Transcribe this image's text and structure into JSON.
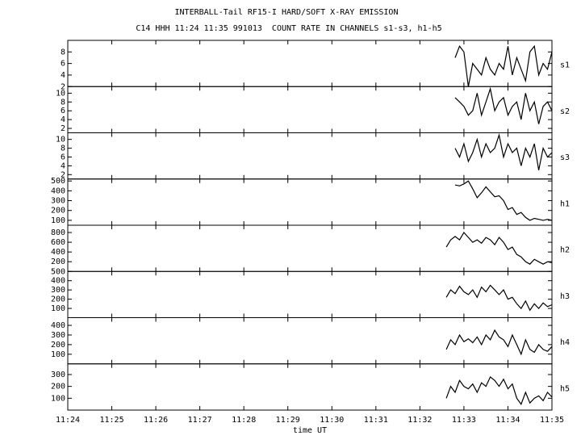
{
  "chart_data": [
    {
      "type": "line",
      "title": "INTERBALL-Tail RF15-I HARD/SOFT X-RAY EMISSION",
      "subtitle": "C14 HHH 11:24 11:35 991013  COUNT RATE IN CHANNELS s1-s3, h1-h5",
      "label": "s1",
      "color": "#000000",
      "x": [
        692.8,
        692.9,
        693.0,
        693.1,
        693.2,
        693.3,
        693.4,
        693.5,
        693.6,
        693.7,
        693.8,
        693.9,
        694.0,
        694.1,
        694.2,
        694.3,
        694.4,
        694.5,
        694.6,
        694.7,
        694.8,
        694.9,
        695.0
      ],
      "values": [
        7,
        9,
        8,
        2,
        6,
        5,
        4,
        7,
        5,
        4,
        6,
        5,
        9,
        4,
        7,
        5,
        3,
        8,
        9,
        4,
        6,
        5,
        8
      ],
      "ylim": [
        2,
        10
      ],
      "yticks": [
        2,
        4,
        6,
        8
      ]
    },
    {
      "type": "line",
      "label": "s2",
      "color": "#000000",
      "x": [
        692.8,
        692.9,
        693.0,
        693.1,
        693.2,
        693.3,
        693.4,
        693.5,
        693.6,
        693.7,
        693.8,
        693.9,
        694.0,
        694.1,
        694.2,
        694.3,
        694.4,
        694.5,
        694.6,
        694.7,
        694.8,
        694.9,
        695.0
      ],
      "values": [
        9,
        8,
        7,
        5,
        6,
        10,
        5,
        8,
        11,
        6,
        8,
        9,
        5,
        7,
        8,
        4,
        10,
        6,
        8,
        3,
        7,
        8,
        6
      ],
      "ylim": [
        1,
        11.5
      ],
      "yticks": [
        2,
        4,
        6,
        8,
        10
      ]
    },
    {
      "type": "line",
      "label": "s3",
      "color": "#000000",
      "x": [
        692.8,
        692.9,
        693.0,
        693.1,
        693.2,
        693.3,
        693.4,
        693.5,
        693.6,
        693.7,
        693.8,
        693.9,
        694.0,
        694.1,
        694.2,
        694.3,
        694.4,
        694.5,
        694.6,
        694.7,
        694.8,
        694.9,
        695.0
      ],
      "values": [
        8,
        6,
        9,
        5,
        7,
        10,
        6,
        9,
        7,
        8,
        11,
        6,
        9,
        7,
        8,
        4,
        8,
        6,
        9,
        3,
        8,
        6,
        7
      ],
      "ylim": [
        1,
        11.5
      ],
      "yticks": [
        2,
        4,
        6,
        8,
        10
      ]
    },
    {
      "type": "line",
      "label": "h1",
      "color": "#000000",
      "x": [
        692.8,
        692.9,
        693.0,
        693.1,
        693.2,
        693.3,
        693.4,
        693.5,
        693.6,
        693.7,
        693.8,
        693.9,
        694.0,
        694.1,
        694.2,
        694.3,
        694.4,
        694.5,
        694.6,
        694.7,
        694.8,
        694.9,
        695.0
      ],
      "values": [
        460,
        450,
        470,
        500,
        420,
        330,
        380,
        440,
        390,
        340,
        350,
        300,
        210,
        230,
        160,
        180,
        130,
        100,
        120,
        110,
        100,
        110,
        100
      ],
      "ylim": [
        50,
        520
      ],
      "yticks": [
        100,
        200,
        300,
        400,
        500
      ]
    },
    {
      "type": "line",
      "label": "h2",
      "color": "#000000",
      "x": [
        692.6,
        692.7,
        692.8,
        692.9,
        693.0,
        693.1,
        693.2,
        693.3,
        693.4,
        693.5,
        693.6,
        693.7,
        693.8,
        693.9,
        694.0,
        694.1,
        694.2,
        694.3,
        694.4,
        694.5,
        694.6,
        694.7,
        694.8,
        694.9,
        695.0
      ],
      "values": [
        500,
        650,
        720,
        650,
        800,
        700,
        600,
        650,
        580,
        700,
        650,
        550,
        700,
        600,
        450,
        500,
        350,
        300,
        200,
        150,
        250,
        200,
        150,
        200,
        180
      ],
      "ylim": [
        0,
        950
      ],
      "yticks": [
        200,
        400,
        600,
        800
      ]
    },
    {
      "type": "line",
      "label": "h3",
      "color": "#000000",
      "x": [
        692.6,
        692.7,
        692.8,
        692.9,
        693.0,
        693.1,
        693.2,
        693.3,
        693.4,
        693.5,
        693.6,
        693.7,
        693.8,
        693.9,
        694.0,
        694.1,
        694.2,
        694.3,
        694.4,
        694.5,
        694.6,
        694.7,
        694.8,
        694.9,
        695.0
      ],
      "values": [
        220,
        300,
        260,
        340,
        280,
        250,
        300,
        220,
        330,
        280,
        350,
        300,
        250,
        300,
        200,
        220,
        150,
        100,
        180,
        80,
        150,
        100,
        160,
        120,
        140
      ],
      "ylim": [
        0,
        500
      ],
      "yticks": [
        100,
        200,
        300,
        400,
        500
      ]
    },
    {
      "type": "line",
      "label": "h4",
      "color": "#000000",
      "x": [
        692.6,
        692.7,
        692.8,
        692.9,
        693.0,
        693.1,
        693.2,
        693.3,
        693.4,
        693.5,
        693.6,
        693.7,
        693.8,
        693.9,
        694.0,
        694.1,
        694.2,
        694.3,
        694.4,
        694.5,
        694.6,
        694.7,
        694.8,
        694.9,
        695.0
      ],
      "values": [
        150,
        250,
        200,
        300,
        230,
        260,
        220,
        280,
        200,
        300,
        250,
        350,
        280,
        250,
        180,
        300,
        200,
        100,
        250,
        150,
        120,
        200,
        150,
        130,
        180
      ],
      "ylim": [
        0,
        480
      ],
      "yticks": [
        100,
        200,
        300,
        400
      ]
    },
    {
      "type": "line",
      "label": "h5",
      "color": "#000000",
      "xlabel": "time UT",
      "x": [
        692.6,
        692.7,
        692.8,
        692.9,
        693.0,
        693.1,
        693.2,
        693.3,
        693.4,
        693.5,
        693.6,
        693.7,
        693.8,
        693.9,
        694.0,
        694.1,
        694.2,
        694.3,
        694.4,
        694.5,
        694.6,
        694.7,
        694.8,
        694.9,
        695.0
      ],
      "values": [
        100,
        200,
        150,
        250,
        200,
        180,
        220,
        150,
        230,
        200,
        280,
        250,
        200,
        260,
        180,
        220,
        100,
        50,
        150,
        60,
        100,
        120,
        80,
        150,
        110
      ],
      "ylim": [
        0,
        390
      ],
      "yticks": [
        100,
        200,
        300
      ],
      "xlim": [
        684,
        695
      ],
      "xticks": [
        {
          "value": 684,
          "label": "11:24"
        },
        {
          "value": 685,
          "label": "11:25"
        },
        {
          "value": 686,
          "label": "11:26"
        },
        {
          "value": 687,
          "label": "11:27"
        },
        {
          "value": 688,
          "label": "11:28"
        },
        {
          "value": 689,
          "label": "11:29"
        },
        {
          "value": 690,
          "label": "11:30"
        },
        {
          "value": 691,
          "label": "11:31"
        },
        {
          "value": 692,
          "label": "11:32"
        },
        {
          "value": 693,
          "label": "11:33"
        },
        {
          "value": 694,
          "label": "11:34"
        },
        {
          "value": 695,
          "label": "11:35"
        }
      ]
    }
  ]
}
